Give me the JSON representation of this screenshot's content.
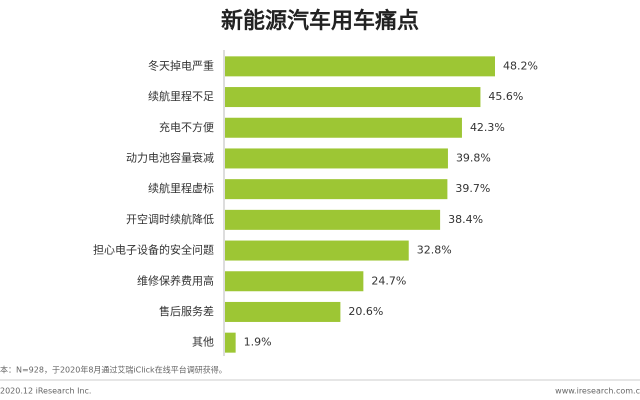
{
  "chart_data": {
    "type": "bar",
    "orientation": "horizontal",
    "title": "新能源汽车用车痛点",
    "categories": [
      "冬天掉电严重",
      "续航里程不足",
      "充电不方便",
      "动力电池容量衰减",
      "续航里程虚标",
      "开空调时续航降低",
      "担心电子设备的安全问题",
      "维修保养费用高",
      "售后服务差",
      "其他"
    ],
    "values": [
      48.2,
      45.6,
      42.3,
      39.8,
      39.7,
      38.4,
      32.8,
      24.7,
      20.6,
      1.9
    ],
    "value_labels": [
      "48.2%",
      "45.6%",
      "42.3%",
      "39.8%",
      "39.7%",
      "38.4%",
      "32.8%",
      "24.7%",
      "20.6%",
      "1.9%"
    ],
    "color": "#9dc634",
    "source": "本：N=928，于2020年8月通过艾瑞iClick在线平台调研获得。",
    "copyright": "2020.12 iResearch Inc.",
    "website": "www.iresearch.com.c"
  }
}
